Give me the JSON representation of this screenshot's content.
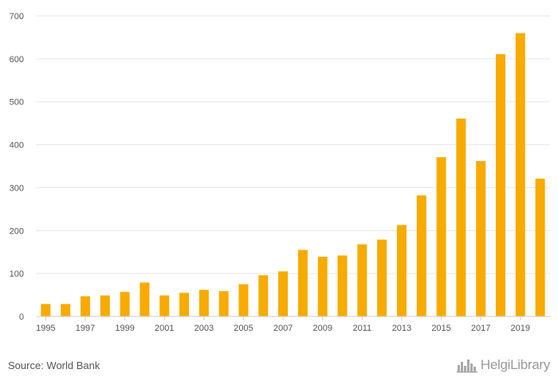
{
  "chart_data": {
    "type": "bar",
    "categories": [
      "1995",
      "1996",
      "1997",
      "1998",
      "1999",
      "2000",
      "2001",
      "2002",
      "2003",
      "2004",
      "2005",
      "2006",
      "2007",
      "2008",
      "2009",
      "2010",
      "2011",
      "2012",
      "2013",
      "2014",
      "2015",
      "2016",
      "2017",
      "2018",
      "2019",
      "2020"
    ],
    "x_tick_labels": [
      "1995",
      "1997",
      "1999",
      "2001",
      "2003",
      "2005",
      "2007",
      "2009",
      "2011",
      "2013",
      "2015",
      "2017",
      "2019"
    ],
    "values": [
      29,
      29,
      47,
      49,
      57,
      79,
      49,
      55,
      62,
      59,
      75,
      96,
      105,
      155,
      139,
      142,
      168,
      179,
      213,
      282,
      371,
      461,
      362,
      611,
      660,
      321
    ],
    "y_ticks": [
      0,
      100,
      200,
      300,
      400,
      500,
      600,
      700
    ],
    "ylim": [
      0,
      700
    ],
    "bar_color": "#f7ab00",
    "grid": true,
    "title": "",
    "xlabel": "",
    "ylabel": ""
  },
  "footer": {
    "source": "Source: World Bank",
    "brand": "HelgiLibrary"
  },
  "colors": {
    "grid": "#e6e6e6",
    "axis": "#cccccc",
    "text": "#555555",
    "brand": "#9a9a9a"
  },
  "icons": {
    "brand_logo": "city-skyline-icon"
  }
}
